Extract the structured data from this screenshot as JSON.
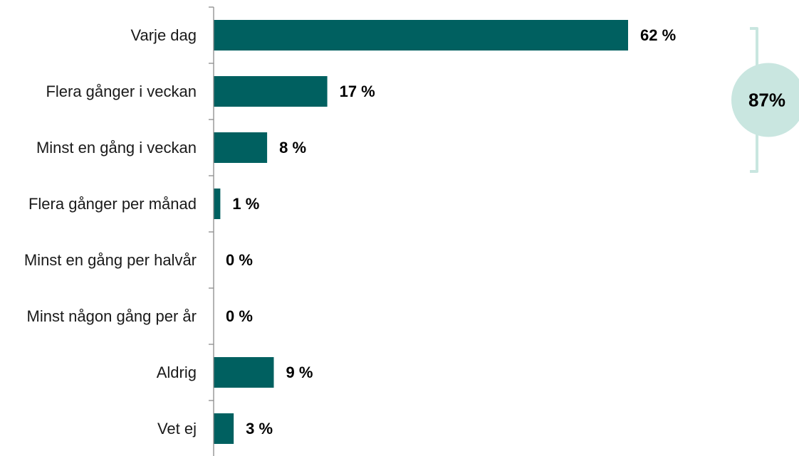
{
  "colors": {
    "bar": "#006060",
    "axis": "#8c8c8c",
    "bracket": "#c9e6e0",
    "circle": "#c9e6e0"
  },
  "chart_data": {
    "type": "bar",
    "orientation": "horizontal",
    "categories": [
      "Varje dag",
      "Flera gånger i veckan",
      "Minst en gång i veckan",
      "Flera gånger per månad",
      "Minst en gång per halvår",
      "Minst någon gång per år",
      "Aldrig",
      "Vet ej"
    ],
    "values": [
      62,
      17,
      8,
      1,
      0,
      0,
      9,
      3
    ],
    "value_labels": [
      "62 %",
      "17 %",
      "8 %",
      "1 %",
      "0 %",
      "0 %",
      "9 %",
      "3 %"
    ],
    "xlim": [
      0,
      62
    ],
    "title": "",
    "xlabel": "",
    "ylabel": "",
    "grid": false,
    "annotation": {
      "text": "87%",
      "spans_categories": [
        "Varje dag",
        "Flera gånger i veckan",
        "Minst en gång i veckan"
      ]
    }
  }
}
